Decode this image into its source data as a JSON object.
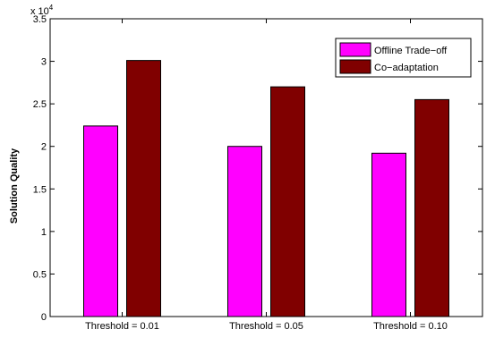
{
  "chart_data": {
    "type": "bar",
    "categories": [
      "Threshold = 0.01",
      "Threshold = 0.05",
      "Threshold = 0.10"
    ],
    "series": [
      {
        "name": "Offline Trade−off",
        "color": "#ff00ff",
        "values": [
          22400,
          20000,
          19200
        ]
      },
      {
        "name": "Co−adaptation",
        "color": "#800000",
        "values": [
          30100,
          27000,
          25500
        ]
      }
    ],
    "title": "",
    "xlabel": "",
    "ylabel": "Solution Quality",
    "ylim": [
      0,
      35000
    ],
    "yticks": [
      0,
      0.5,
      1,
      1.5,
      2,
      2.5,
      3,
      3.5
    ],
    "ytick_labels": [
      "0",
      "0.5",
      "1",
      "1.5",
      "2",
      "2.5",
      "3",
      "3.5"
    ],
    "y_multiplier_label": {
      "base": "x 10",
      "exponent": "4"
    },
    "legend_position": "top-right",
    "grid": false
  }
}
